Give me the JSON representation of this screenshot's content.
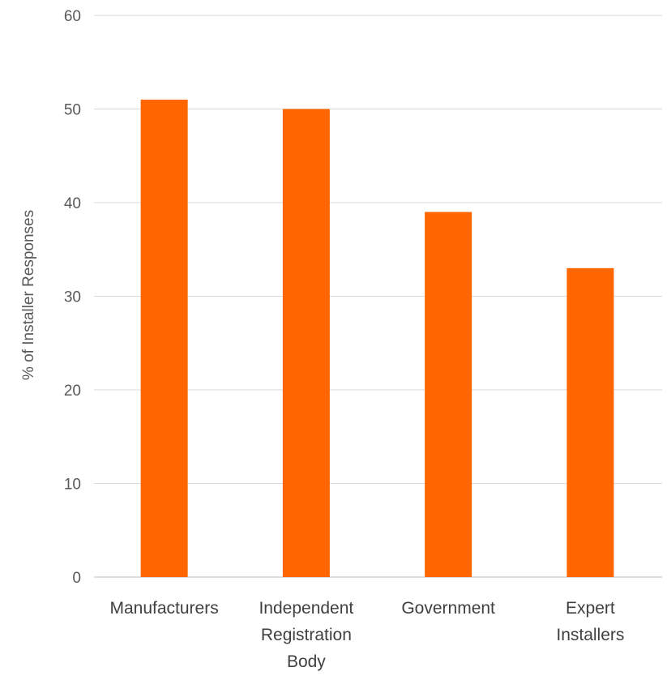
{
  "chart_data": {
    "type": "bar",
    "categories": [
      [
        "Manufacturers"
      ],
      [
        "Independent",
        "Registration",
        "Body"
      ],
      [
        "Government"
      ],
      [
        "Expert",
        "Installers"
      ]
    ],
    "values": [
      51,
      50,
      39,
      33
    ],
    "ylabel": "% of Installer Responses",
    "xlabel": "",
    "ylim": [
      0,
      60
    ],
    "yticks": [
      "0",
      "10",
      "20",
      "30",
      "40",
      "50",
      "60"
    ],
    "grid": true,
    "legend": "none",
    "bar_color": "#ff6600"
  }
}
